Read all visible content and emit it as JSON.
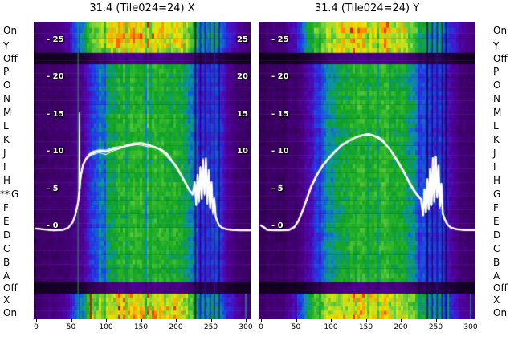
{
  "figure": {
    "background": "#ffffff",
    "text_color": "#000000"
  },
  "side_labels": {
    "left": [
      "On",
      "Y",
      "Off",
      "P",
      "O",
      "N",
      "M",
      "L",
      "K",
      "J",
      "I",
      "H",
      "G",
      "F",
      "E",
      "D",
      "C",
      "B",
      "A",
      "Off",
      "X",
      "On"
    ],
    "right": [
      "On",
      "Y",
      "Off",
      "P",
      "O",
      "N",
      "M",
      "L",
      "K",
      "J",
      "I",
      "H",
      "G",
      "F",
      "E",
      "D",
      "C",
      "B",
      "A",
      "Off",
      "X",
      "On"
    ],
    "marker": {
      "row_index": 12,
      "text": "**",
      "side": "left"
    }
  },
  "colors": {
    "overlay_line": "#ffffff",
    "colormap": [
      [
        0,
        "#000000"
      ],
      [
        0.07,
        "#1c0032"
      ],
      [
        0.14,
        "#3c0064"
      ],
      [
        0.21,
        "#500096"
      ],
      [
        0.28,
        "#4614c8"
      ],
      [
        0.34,
        "#1e3ce6"
      ],
      [
        0.4,
        "#1464d2"
      ],
      [
        0.46,
        "#0a96a0"
      ],
      [
        0.52,
        "#0fa028"
      ],
      [
        0.6,
        "#28b428"
      ],
      [
        0.68,
        "#5ac83c"
      ],
      [
        0.75,
        "#aadc28"
      ],
      [
        0.81,
        "#e6e600"
      ],
      [
        0.88,
        "#ff9600"
      ],
      [
        0.94,
        "#e61400"
      ],
      [
        1,
        "#7d0000"
      ]
    ]
  },
  "chart_data": [
    {
      "type": "heatmap",
      "title": "31.4 (Tile024=24) X",
      "grid": false,
      "x_ticks": [
        0,
        50,
        100,
        150,
        200,
        250,
        300
      ],
      "x_range": [
        0,
        310
      ],
      "value_axis": {
        "ticks": [
          25,
          20,
          15,
          10,
          5,
          0
        ],
        "left_labels": [
          "- 25",
          "- 20",
          "- 15",
          "- 10",
          "- 5",
          "- 0"
        ],
        "right_labels": [
          "25",
          "20",
          "15",
          "10"
        ]
      },
      "rows": [
        "On",
        "Y",
        "Off",
        "P",
        "O",
        "N",
        "M",
        "L",
        "K",
        "J",
        "I",
        "H",
        "G",
        "F",
        "E",
        "D",
        "C",
        "B",
        "A",
        "Off",
        "X",
        "On"
      ],
      "row_types": [
        "bright",
        "bright",
        "off",
        "normal",
        "normal",
        "normal",
        "normal",
        "normal",
        "normal",
        "normal",
        "normal",
        "normal",
        "normal",
        "normal",
        "normal",
        "normal",
        "normal",
        "normal",
        "normal",
        "off",
        "bright",
        "bright"
      ],
      "type_gain": {
        "bright": 1.0,
        "normal": 1.0,
        "off": 0.32
      },
      "intensity_profile": {
        "x": [
          0,
          18,
          38,
          52,
          62,
          72,
          82,
          92,
          102,
          112,
          125,
          145,
          165,
          185,
          200,
          212,
          222,
          230,
          238,
          248,
          256,
          264,
          272,
          282,
          295,
          310
        ],
        "v": [
          0.14,
          0.15,
          0.16,
          0.17,
          0.21,
          0.27,
          0.34,
          0.42,
          0.48,
          0.53,
          0.56,
          0.58,
          0.585,
          0.575,
          0.55,
          0.51,
          0.45,
          0.39,
          0.34,
          0.33,
          0.34,
          0.31,
          0.23,
          0.175,
          0.15,
          0.14
        ]
      },
      "bright_profile": {
        "x": [
          0,
          15,
          32,
          44,
          52,
          60,
          68,
          78,
          90,
          105,
          125,
          150,
          175,
          195,
          212,
          225,
          235,
          245,
          255,
          263,
          272,
          282,
          295,
          310
        ],
        "v": [
          0.15,
          0.17,
          0.19,
          0.23,
          0.3,
          0.4,
          0.52,
          0.63,
          0.72,
          0.77,
          0.8,
          0.81,
          0.8,
          0.78,
          0.73,
          0.62,
          0.5,
          0.44,
          0.47,
          0.4,
          0.32,
          0.25,
          0.19,
          0.16
        ]
      },
      "features": [
        {
          "x": 60,
          "w": 1.5,
          "color": "#00c832",
          "band": "all",
          "alpha": 0.6
        },
        {
          "x": 78,
          "w": 2,
          "color": "#e10000",
          "band": "bottom",
          "alpha": 0.9
        },
        {
          "x": 228,
          "w": 2,
          "color": "#0a0a46",
          "band": "all",
          "alpha": 0.8
        },
        {
          "x": 235,
          "w": 1.5,
          "color": "#0a0a46",
          "band": "all",
          "alpha": 0.7
        },
        {
          "x": 242,
          "w": 2,
          "color": "#16168c",
          "band": "all",
          "alpha": 0.8
        },
        {
          "x": 249,
          "w": 1.5,
          "color": "#0a0a46",
          "band": "all",
          "alpha": 0.7
        },
        {
          "x": 255,
          "w": 2,
          "color": "#1e1ea0",
          "band": "all",
          "alpha": 0.8
        },
        {
          "x": 262,
          "w": 1.5,
          "color": "#0a0a46",
          "band": "all",
          "alpha": 0.7
        },
        {
          "x": 300,
          "w": 1.5,
          "color": "#00b4b4",
          "band": "bottom",
          "alpha": 0.8
        }
      ],
      "overlay_line": {
        "color": "#ffffff",
        "width": 2.3,
        "bundle_lines": 3,
        "bundle_spread": 1.1,
        "x": [
          0,
          12,
          25,
          38,
          46,
          52,
          56,
          60,
          62,
          64,
          67,
          71,
          76,
          82,
          90,
          100,
          110,
          120,
          130,
          140,
          150,
          160,
          170,
          180,
          188,
          195,
          202,
          208,
          214,
          219,
          224,
          227,
          229,
          231,
          233,
          235,
          237,
          239,
          241,
          243,
          245,
          247,
          249,
          251,
          253,
          255,
          257,
          259,
          262,
          266,
          272,
          280,
          292,
          310
        ],
        "v": [
          -0.3,
          -0.45,
          -0.55,
          -0.5,
          -0.2,
          0.5,
          1.5,
          3.2,
          5.0,
          6.8,
          8.2,
          9.0,
          9.6,
          9.9,
          10.1,
          10.0,
          10.3,
          10.5,
          10.8,
          11.0,
          11.1,
          10.9,
          10.6,
          10.2,
          9.6,
          8.7,
          7.8,
          6.8,
          5.8,
          4.9,
          4.3,
          5.9,
          2.9,
          6.9,
          3.3,
          7.9,
          3.7,
          8.7,
          4.3,
          9.1,
          3.1,
          7.5,
          2.5,
          5.9,
          1.9,
          3.7,
          1.3,
          0.7,
          0.1,
          -0.2,
          -0.4,
          -0.5,
          -0.55,
          -0.55
        ],
        "spike": {
          "x": 62,
          "v": 15.2,
          "base": 5.0
        }
      }
    },
    {
      "type": "heatmap",
      "title": "31.4 (Tile024=24) Y",
      "grid": false,
      "x_ticks": [
        0,
        50,
        100,
        150,
        200,
        250,
        300
      ],
      "x_range": [
        0,
        310
      ],
      "value_axis": {
        "ticks": [
          25,
          20,
          15,
          10,
          5,
          0
        ],
        "left_labels": [
          "- 25",
          "- 20",
          "- 15",
          "- 10",
          "- 5",
          "- 0"
        ],
        "right_labels": []
      },
      "rows": [
        "On",
        "Y",
        "Off",
        "P",
        "O",
        "N",
        "M",
        "L",
        "K",
        "J",
        "I",
        "H",
        "G",
        "F",
        "E",
        "D",
        "C",
        "B",
        "A",
        "Off",
        "X",
        "On"
      ],
      "row_types": [
        "bright",
        "bright",
        "off",
        "normal",
        "normal",
        "normal",
        "normal",
        "normal",
        "normal",
        "normal",
        "normal",
        "normal",
        "normal",
        "normal",
        "normal",
        "normal",
        "normal",
        "normal",
        "normal",
        "off",
        "bright",
        "bright"
      ],
      "type_gain": {
        "bright": 1.0,
        "normal": 1.0,
        "off": 0.32
      },
      "intensity_profile": {
        "x": [
          0,
          15,
          35,
          50,
          60,
          70,
          80,
          90,
          100,
          112,
          125,
          145,
          165,
          185,
          200,
          212,
          222,
          232,
          240,
          250,
          258,
          266,
          274,
          284,
          298,
          310
        ],
        "v": [
          0.13,
          0.14,
          0.15,
          0.16,
          0.19,
          0.25,
          0.33,
          0.41,
          0.47,
          0.52,
          0.55,
          0.575,
          0.58,
          0.57,
          0.545,
          0.5,
          0.44,
          0.37,
          0.33,
          0.32,
          0.33,
          0.3,
          0.22,
          0.17,
          0.145,
          0.135
        ]
      },
      "bright_profile": {
        "x": [
          0,
          15,
          32,
          44,
          52,
          60,
          68,
          78,
          90,
          105,
          125,
          150,
          175,
          195,
          212,
          225,
          235,
          245,
          255,
          263,
          272,
          282,
          295,
          310
        ],
        "v": [
          0.15,
          0.17,
          0.19,
          0.23,
          0.3,
          0.4,
          0.52,
          0.63,
          0.72,
          0.77,
          0.8,
          0.81,
          0.8,
          0.78,
          0.73,
          0.62,
          0.5,
          0.44,
          0.47,
          0.4,
          0.32,
          0.25,
          0.19,
          0.16
        ]
      },
      "features": [
        {
          "x": 238,
          "w": 2,
          "color": "#0a0a46",
          "band": "all",
          "alpha": 0.8
        },
        {
          "x": 245,
          "w": 1.5,
          "color": "#0a0a46",
          "band": "all",
          "alpha": 0.7
        },
        {
          "x": 252,
          "w": 2,
          "color": "#16168c",
          "band": "all",
          "alpha": 0.8
        },
        {
          "x": 259,
          "w": 1.5,
          "color": "#0a0a46",
          "band": "all",
          "alpha": 0.7
        },
        {
          "x": 265,
          "w": 2,
          "color": "#0a0a46",
          "band": "all",
          "alpha": 0.8
        },
        {
          "x": 268,
          "w": 1.5,
          "color": "#00c832",
          "band": "bottom",
          "alpha": 0.85
        },
        {
          "x": 300,
          "w": 1.5,
          "color": "#00b4b4",
          "band": "bottom",
          "alpha": 0.8
        }
      ],
      "overlay_line": {
        "color": "#ffffff",
        "width": 2.5,
        "bundle_lines": 3,
        "bundle_spread": 0.7,
        "x": [
          0,
          5,
          8,
          12,
          25,
          40,
          48,
          54,
          60,
          66,
          72,
          80,
          88,
          96,
          105,
          115,
          125,
          135,
          145,
          153,
          160,
          167,
          174,
          181,
          188,
          195,
          202,
          208,
          214,
          220,
          225,
          229,
          232,
          234,
          236,
          238,
          240,
          242,
          244,
          246,
          248,
          250,
          252,
          254,
          256,
          258,
          260,
          263,
          267,
          272,
          280,
          292,
          310
        ],
        "v": [
          0.1,
          -0.2,
          -0.45,
          -0.5,
          -0.55,
          -0.5,
          -0.1,
          0.8,
          2.2,
          3.8,
          5.4,
          6.9,
          8.1,
          9.0,
          9.9,
          10.8,
          11.4,
          11.9,
          12.2,
          12.3,
          12.2,
          11.9,
          11.4,
          10.7,
          9.8,
          8.8,
          7.7,
          6.6,
          5.5,
          4.6,
          4.0,
          3.6,
          1.5,
          4.9,
          1.9,
          6.3,
          2.3,
          7.7,
          2.9,
          9.1,
          3.3,
          9.3,
          3.9,
          8.1,
          2.7,
          5.7,
          1.7,
          0.9,
          0.2,
          -0.2,
          -0.4,
          -0.5,
          -0.5
        ]
      }
    }
  ]
}
